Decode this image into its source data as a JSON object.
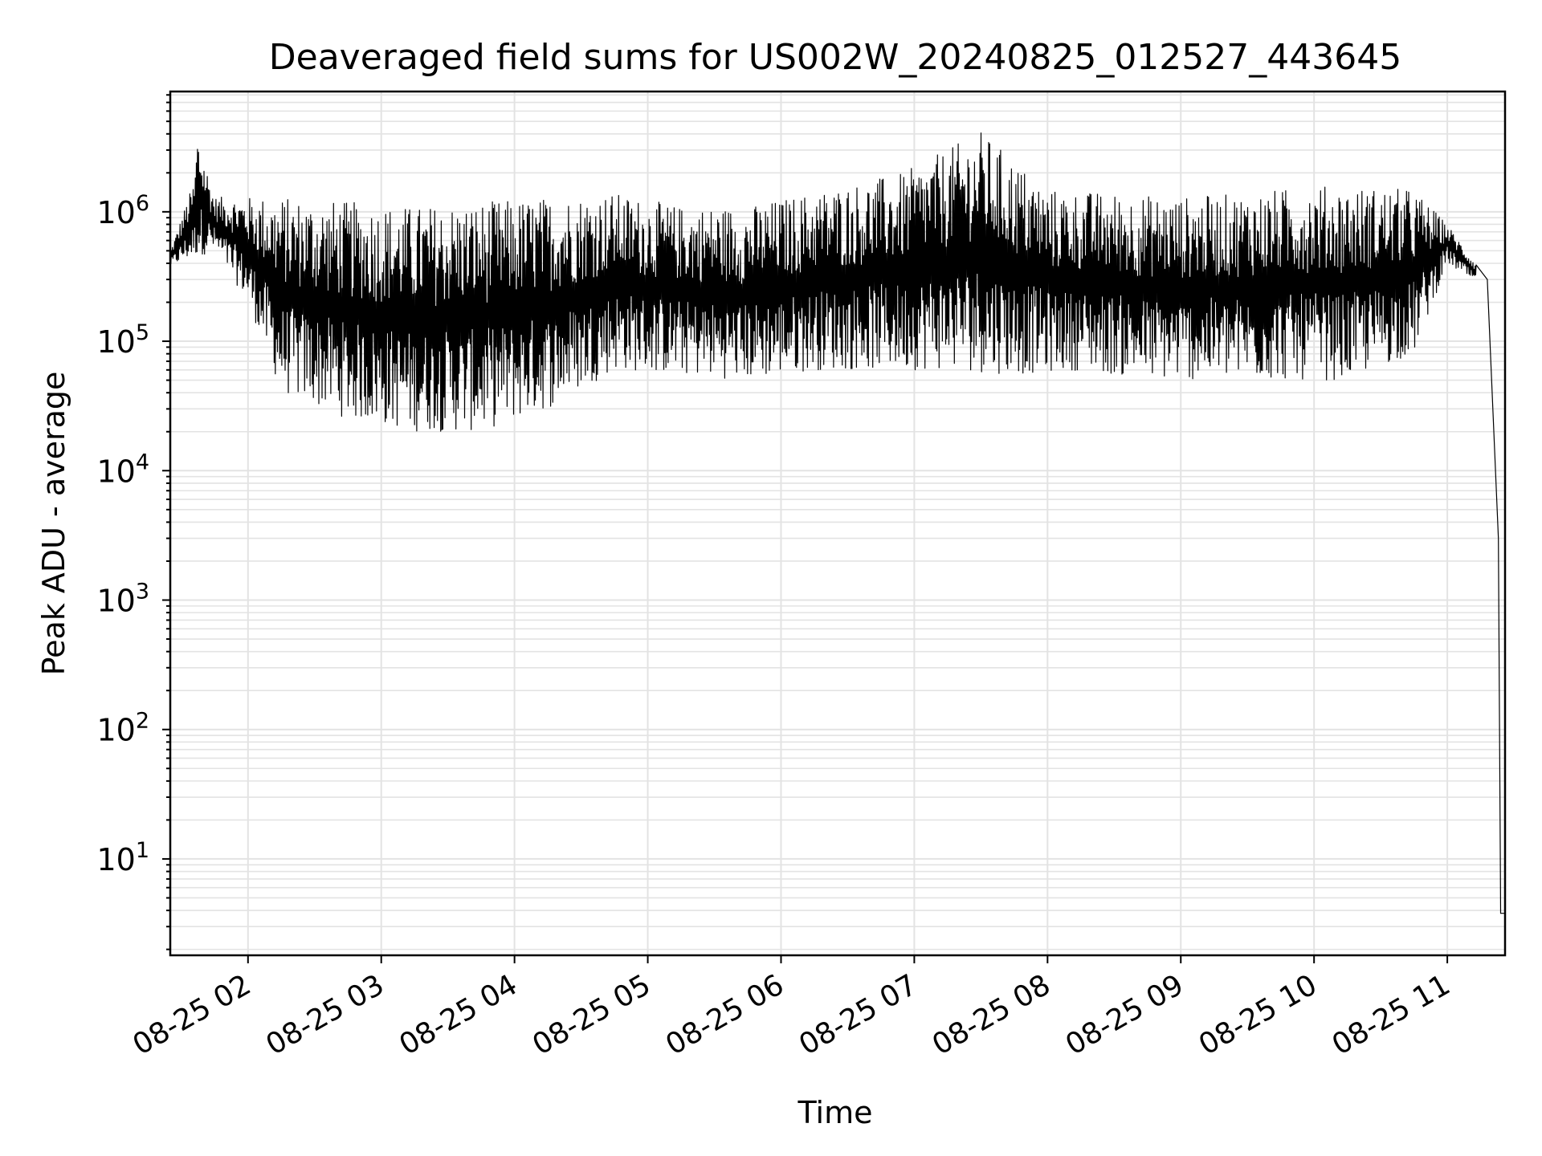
{
  "chart_data": {
    "type": "line",
    "title": "Deaveraged field sums for US002W_20240825_012527_443645",
    "xlabel": "Time",
    "ylabel": "Peak ADU - average",
    "y_scale": "log",
    "grid": "on (major and minor)",
    "legend": "none",
    "xlim": [
      "2024-08-25 01:25",
      "2024-08-25 11:26"
    ],
    "ylim": [
      1.8,
      8500000
    ],
    "x_ticks": [
      {
        "time": "2024-08-25 02:00",
        "label": "08-25 02"
      },
      {
        "time": "2024-08-25 03:00",
        "label": "08-25 03"
      },
      {
        "time": "2024-08-25 04:00",
        "label": "08-25 04"
      },
      {
        "time": "2024-08-25 05:00",
        "label": "08-25 05"
      },
      {
        "time": "2024-08-25 06:00",
        "label": "08-25 06"
      },
      {
        "time": "2024-08-25 07:00",
        "label": "08-25 07"
      },
      {
        "time": "2024-08-25 08:00",
        "label": "08-25 08"
      },
      {
        "time": "2024-08-25 09:00",
        "label": "08-25 09"
      },
      {
        "time": "2024-08-25 10:00",
        "label": "08-25 10"
      },
      {
        "time": "2024-08-25 11:00",
        "label": "08-25 11"
      }
    ],
    "y_ticks": [
      {
        "value": 10,
        "base": "10",
        "exp": "1"
      },
      {
        "value": 100,
        "base": "10",
        "exp": "2"
      },
      {
        "value": 1000,
        "base": "10",
        "exp": "3"
      },
      {
        "value": 10000,
        "base": "10",
        "exp": "4"
      },
      {
        "value": 100000,
        "base": "10",
        "exp": "5"
      },
      {
        "value": 1000000,
        "base": "10",
        "exp": "6"
      }
    ],
    "series": [
      {
        "color": "#000000",
        "note_upper_envelope": [
          [
            "2024-08-25 01:25",
            500000
          ],
          [
            "2024-08-25 01:36",
            1800000
          ],
          [
            "2024-08-25 01:37",
            4300000
          ],
          [
            "2024-08-25 01:45",
            1300000
          ],
          [
            "2024-08-25 02:15",
            1300000
          ],
          [
            "2024-08-25 02:45",
            1200000
          ],
          [
            "2024-08-25 03:15",
            1100000
          ],
          [
            "2024-08-25 03:45",
            1200000
          ],
          [
            "2024-08-25 04:15",
            1300000
          ],
          [
            "2024-08-25 04:45",
            1400000
          ],
          [
            "2024-08-25 05:15",
            1100000
          ],
          [
            "2024-08-25 05:45",
            1100000
          ],
          [
            "2024-08-25 06:20",
            1500000
          ],
          [
            "2024-08-25 06:55",
            2000000
          ],
          [
            "2024-08-25 07:30",
            4200000
          ],
          [
            "2024-08-25 08:00",
            1500000
          ],
          [
            "2024-08-25 08:30",
            1400000
          ],
          [
            "2024-08-25 09:00",
            1300000
          ],
          [
            "2024-08-25 09:30",
            1400000
          ],
          [
            "2024-08-25 10:00",
            1600000
          ],
          [
            "2024-08-25 10:45",
            1500000
          ],
          [
            "2024-08-25 11:00",
            800000
          ],
          [
            "2024-08-25 11:13",
            400000
          ]
        ],
        "note_lower_envelope": [
          [
            "2024-08-25 01:25",
            380000
          ],
          [
            "2024-08-25 01:45",
            500000
          ],
          [
            "2024-08-25 02:00",
            200000
          ],
          [
            "2024-08-25 02:15",
            40000
          ],
          [
            "2024-08-25 02:45",
            25000
          ],
          [
            "2024-08-25 03:15",
            20000
          ],
          [
            "2024-08-25 03:45",
            20000
          ],
          [
            "2024-08-25 04:15",
            30000
          ],
          [
            "2024-08-25 04:45",
            60000
          ],
          [
            "2024-08-25 05:15",
            55000
          ],
          [
            "2024-08-25 05:45",
            50000
          ],
          [
            "2024-08-25 06:15",
            60000
          ],
          [
            "2024-08-25 06:45",
            60000
          ],
          [
            "2024-08-25 07:15",
            60000
          ],
          [
            "2024-08-25 07:45",
            55000
          ],
          [
            "2024-08-25 08:15",
            60000
          ],
          [
            "2024-08-25 08:45",
            50000
          ],
          [
            "2024-08-25 09:15",
            50000
          ],
          [
            "2024-08-25 09:45",
            50000
          ],
          [
            "2024-08-25 10:15",
            50000
          ],
          [
            "2024-08-25 10:45",
            80000
          ],
          [
            "2024-08-25 11:00",
            400000
          ],
          [
            "2024-08-25 11:13",
            280000
          ]
        ],
        "final_drop": [
          [
            "2024-08-25 11:18",
            300000
          ],
          [
            "2024-08-25 11:23",
            3000
          ],
          [
            "2024-08-25 11:24",
            3.8
          ],
          [
            "2024-08-25 11:26",
            3.8
          ]
        ]
      }
    ]
  }
}
